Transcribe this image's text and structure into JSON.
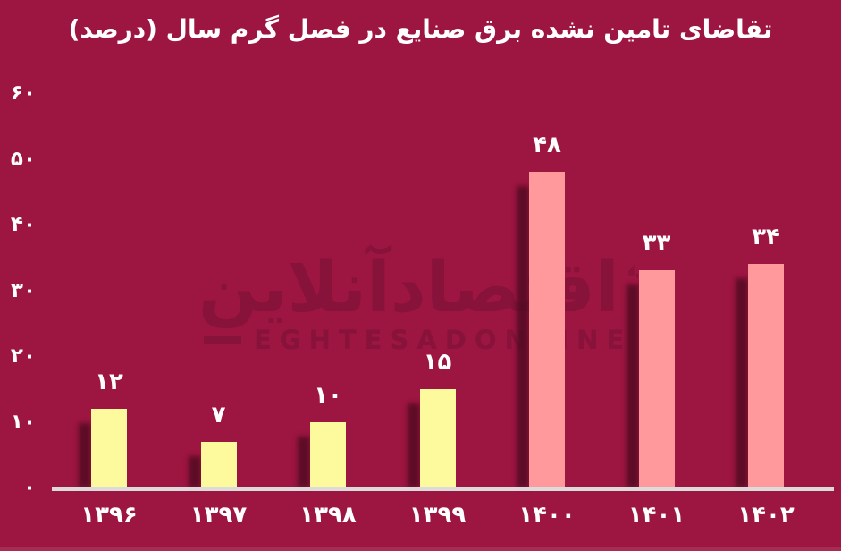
{
  "title": "تقاضای تامین نشده برق صنایع در فصل گرم سال (درصد)",
  "watermark": {
    "persian": "اقتصادآنلاین",
    "latin": "EGHTESADONLINE"
  },
  "colors": {
    "background": "#9D1541",
    "bar_yellow": "#FDFA9D",
    "bar_pink": "#FF999B",
    "text": "#FFFFFF",
    "axis_line": "#DBDBDB",
    "watermark": "#87123A",
    "bar_shadow": "#4D0A20"
  },
  "chart_data": {
    "type": "bar",
    "title": "تقاضای تامین نشده برق صنایع در فصل گرم سال (درصد)",
    "categories": [
      "۱۳۹۶",
      "۱۳۹۷",
      "۱۳۹۸",
      "۱۳۹۹",
      "۱۴۰۰",
      "۱۴۰۱",
      "۱۴۰۲"
    ],
    "values": [
      12,
      7,
      10,
      15,
      48,
      33,
      34
    ],
    "value_labels": [
      "۱۲",
      "۷",
      "۱۰",
      "۱۵",
      "۴۸",
      "۳۳",
      "۳۴"
    ],
    "bar_colors": [
      "#FDFA9D",
      "#FDFA9D",
      "#FDFA9D",
      "#FDFA9D",
      "#FF999B",
      "#FF999B",
      "#FF999B"
    ],
    "xlabel": "",
    "ylabel": "",
    "ylim": [
      0,
      60
    ],
    "yticks": [
      0,
      10,
      20,
      30,
      40,
      50,
      60
    ],
    "ytick_labels": [
      "۰",
      "۱۰",
      "۲۰",
      "۳۰",
      "۴۰",
      "۵۰",
      "۶۰"
    ],
    "grid": false,
    "legend": null
  }
}
